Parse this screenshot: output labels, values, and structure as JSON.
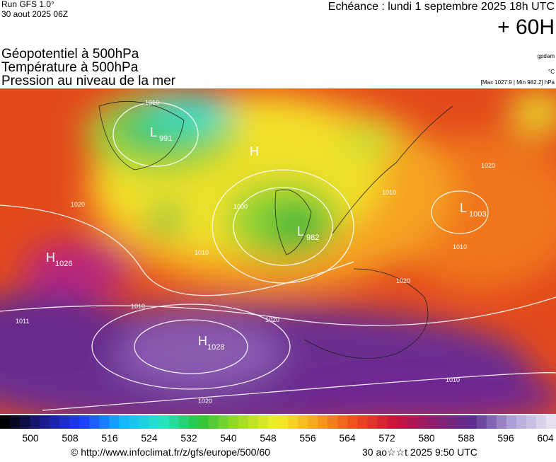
{
  "header": {
    "run": "Run GFS 1.0°",
    "run_date": "30 aout 2025 06Z",
    "forecast": "Echéance : lundi 1 septembre 2025 18h UTC",
    "lead": "+ 60H"
  },
  "fields": {
    "geopotential": "Géopotentiel à 500hPa",
    "temperature": "Température à 500hPa",
    "pressure": "Pression au niveau de la mer",
    "geo_unit": "gpdam",
    "temp_unit": "°C",
    "pressure_range": "[Max 1027.9 | Min 982.2] hPa"
  },
  "centers": [
    {
      "type": "L",
      "value": 991
    },
    {
      "type": "H",
      "value": null
    },
    {
      "type": "L",
      "value": 982
    },
    {
      "type": "L",
      "value": 1003
    },
    {
      "type": "H",
      "value": 1026
    },
    {
      "type": "H",
      "value": 1028
    }
  ],
  "isobar_labels": [
    1010,
    1020,
    1000,
    1010,
    1020,
    1010,
    1011,
    1020,
    1020,
    1010,
    1010,
    1010,
    1020
  ],
  "scale": [
    500,
    508,
    516,
    524,
    532,
    540,
    548,
    556,
    564,
    572,
    580,
    588,
    596,
    604
  ],
  "footer": {
    "source": "© http://www.infoclimat.fr/z/gfs/europe/500/60",
    "generated": "30 ao☆☆t 2025  9:50 UTC"
  }
}
